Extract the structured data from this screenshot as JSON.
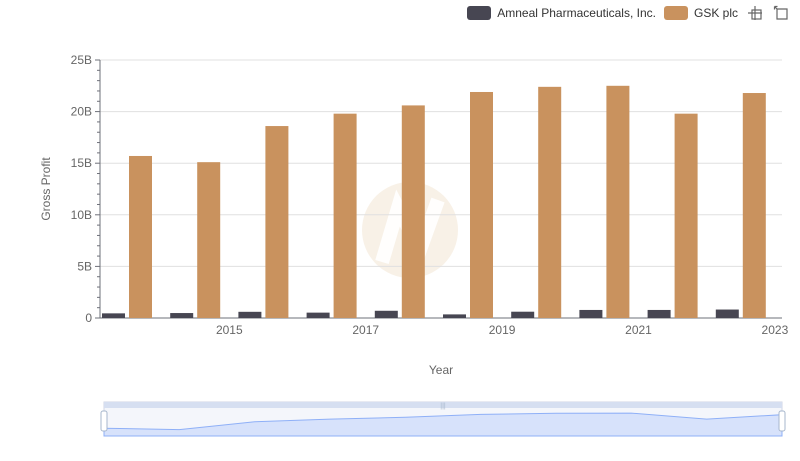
{
  "colors": {
    "amneal": "#474652",
    "gsk": "#c9925e",
    "grid": "#e0e0e0",
    "axis": "#6e7079",
    "slider_fill": "#d7e2fb",
    "slider_line": "#8fb0f7"
  },
  "icons": {
    "zoom": "zoom-icon",
    "restore": "restore-icon"
  },
  "chart_data": {
    "type": "bar",
    "xlabel": "Year",
    "ylabel": "Gross Profit",
    "x_tick_labels": [
      "2015",
      "2017",
      "2019",
      "2021",
      "2023"
    ],
    "y_tick_labels": [
      "0",
      "5B",
      "10B",
      "15B",
      "20B",
      "25B"
    ],
    "ylim": [
      0,
      25000000000
    ],
    "categories": [
      2014,
      2015,
      2016,
      2017,
      2018,
      2019,
      2020,
      2021,
      2022,
      2023
    ],
    "series": [
      {
        "name": "Amneal Pharmaceuticals, Inc.",
        "values": [
          450000000,
          480000000,
          600000000,
          520000000,
          700000000,
          350000000,
          610000000,
          780000000,
          780000000,
          820000000
        ]
      },
      {
        "name": "GSK plc",
        "values": [
          15700000000,
          15100000000,
          18600000000,
          19800000000,
          20600000000,
          21900000000,
          22400000000,
          22500000000,
          19800000000,
          21800000000
        ]
      }
    ],
    "grid": true,
    "legend_position": "top-right",
    "has_zoom_slider": true
  }
}
